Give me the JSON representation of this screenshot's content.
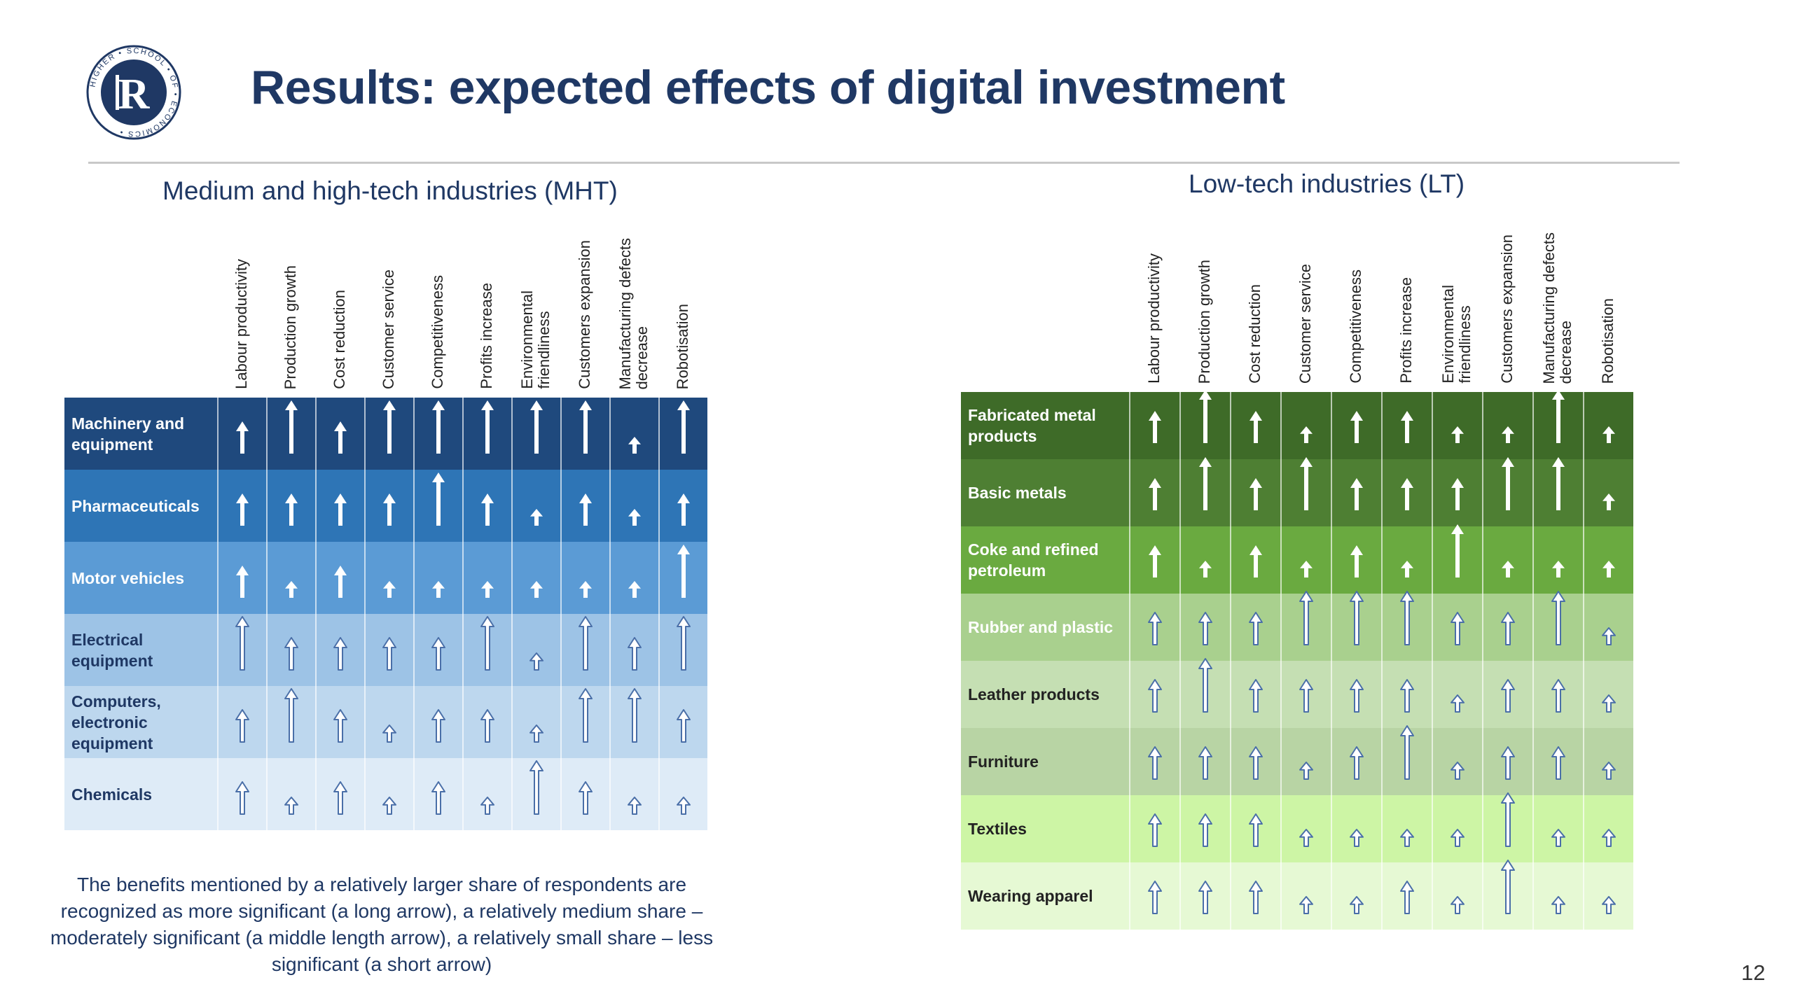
{
  "slide": {
    "title": "Results: expected effects of digital investment",
    "logo_text": "HIGHER SCHOOL OF ECONOMICS",
    "page_number": "12",
    "note": "The benefits mentioned by a relatively larger share of respondents are recognized as more significant (a long arrow), a relatively medium share – moderately significant (a middle length arrow), a relatively small share – less significant (a short arrow)"
  },
  "legend": {
    "1": "less significant (a short arrow)",
    "2": "moderately significant (a middle length arrow)",
    "3": "more significant (a long arrow)"
  },
  "mht": {
    "title": "Medium and high-tech industries (MHT)",
    "columns": [
      "Labour productivity",
      "Production growth",
      "Cost reduction",
      "Customer service",
      "Competitiveness",
      "Profits increase",
      "Environmental\nfriendliness",
      "Customers expansion",
      "Manufacturing defects\ndecrease",
      "Robotisation"
    ],
    "rows": [
      {
        "label": "Machinery and equipment",
        "bg": "#1f497d",
        "fg": "#ffffff",
        "style": "solid",
        "levels": [
          2,
          3,
          2,
          3,
          3,
          3,
          3,
          3,
          1,
          3
        ]
      },
      {
        "label": "Pharmaceuticals",
        "bg": "#2e75b6",
        "fg": "#ffffff",
        "style": "solid",
        "levels": [
          2,
          2,
          2,
          2,
          3,
          2,
          1,
          2,
          1,
          2
        ]
      },
      {
        "label": "Motor vehicles",
        "bg": "#5b9bd5",
        "fg": "#ffffff",
        "style": "solid",
        "levels": [
          2,
          1,
          2,
          1,
          1,
          1,
          1,
          1,
          1,
          3
        ]
      },
      {
        "label": "Electrical equipment",
        "bg": "#9dc3e6",
        "fg": "#1f3864",
        "style": "outline",
        "levels": [
          3,
          2,
          2,
          2,
          2,
          3,
          1,
          3,
          2,
          3
        ]
      },
      {
        "label": "Computers, electronic equipment",
        "bg": "#bdd7ee",
        "fg": "#1f3864",
        "style": "outline",
        "levels": [
          2,
          3,
          2,
          1,
          2,
          2,
          1,
          3,
          3,
          2
        ]
      },
      {
        "label": "Chemicals",
        "bg": "#deebf7",
        "fg": "#1f3864",
        "style": "outline",
        "levels": [
          2,
          1,
          2,
          1,
          2,
          1,
          3,
          2,
          1,
          1
        ]
      }
    ]
  },
  "lt": {
    "title": "Low-tech industries (LT)",
    "columns": [
      "Labour productivity",
      "Production growth",
      "Cost reduction",
      "Customer service",
      "Competitiveness",
      "Profits increase",
      "Environmental\nfriendliness",
      "Customers expansion",
      "Manufacturing defects\ndecrease",
      "Robotisation"
    ],
    "rows": [
      {
        "label": "Fabricated metal products",
        "bg": "#3e6b28",
        "fg": "#ffffff",
        "style": "solid",
        "levels": [
          2,
          3,
          2,
          1,
          2,
          2,
          1,
          1,
          3,
          1
        ]
      },
      {
        "label": "Basic metals",
        "bg": "#4e7f33",
        "fg": "#ffffff",
        "style": "solid",
        "levels": [
          2,
          3,
          2,
          3,
          2,
          2,
          2,
          3,
          3,
          1
        ]
      },
      {
        "label": "Coke and refined petroleum",
        "bg": "#6aaa40",
        "fg": "#ffffff",
        "style": "solid",
        "levels": [
          2,
          1,
          2,
          1,
          2,
          1,
          3,
          1,
          1,
          1
        ]
      },
      {
        "label": "Rubber and plastic",
        "bg": "#a9d08e",
        "fg": "#ffffff",
        "style": "outline",
        "levels": [
          2,
          2,
          2,
          3,
          3,
          3,
          2,
          2,
          3,
          1
        ]
      },
      {
        "label": "Leather products",
        "bg": "#c5dfb3",
        "fg": "#222222",
        "style": "outline",
        "levels": [
          2,
          3,
          2,
          2,
          2,
          2,
          1,
          2,
          2,
          1
        ]
      },
      {
        "label": "Furniture",
        "bg": "#b8d4a4",
        "fg": "#222222",
        "style": "outline",
        "levels": [
          2,
          2,
          2,
          1,
          2,
          3,
          1,
          2,
          2,
          1
        ]
      },
      {
        "label": "Textiles",
        "bg": "#cdf5a5",
        "fg": "#222222",
        "style": "outline",
        "levels": [
          2,
          2,
          2,
          1,
          1,
          1,
          1,
          3,
          1,
          1
        ]
      },
      {
        "label": "Wearing apparel",
        "bg": "#e6f9d4",
        "fg": "#222222",
        "style": "outline",
        "levels": [
          2,
          2,
          2,
          1,
          1,
          2,
          1,
          3,
          1,
          1
        ]
      }
    ]
  },
  "colors": {
    "title": "#1f3864",
    "rule": "#c8c8c8",
    "solid_arrow": "#ffffff",
    "outline_arrow_fill": "#ffffff",
    "outline_arrow_stroke": "#4a6fa8"
  }
}
